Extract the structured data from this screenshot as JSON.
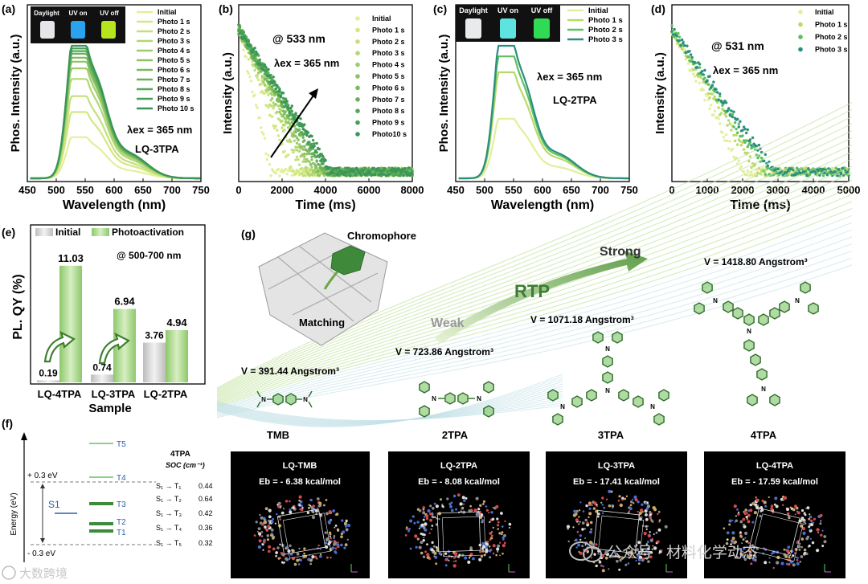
{
  "panel_labels": {
    "a": "(a)",
    "b": "(b)",
    "c": "(c)",
    "d": "(d)",
    "e": "(e)",
    "f": "(f)",
    "g": "(g)"
  },
  "photo_labels": {
    "daylight": "Daylight",
    "uv_on": "UV on",
    "uv_off": "UV off"
  },
  "colors": {
    "series": [
      "#e3ef9a",
      "#d2e882",
      "#c3e07c",
      "#b2d774",
      "#9fcd6c",
      "#8cc464",
      "#79ba5c",
      "#67b158",
      "#56a855",
      "#479f56",
      "#3a9658"
    ],
    "teal": [
      "#e3ef9a",
      "#b8da6a",
      "#5fbf5e",
      "#2a8f80"
    ],
    "bar_initial": "#d4d4d4",
    "bar_photo": "#a9d784",
    "level_green": "#3d8a3a",
    "level_blue": "#2a5fb0"
  },
  "chart_data": [
    {
      "id": "a",
      "type": "line",
      "xlabel": "Wavelength (nm)",
      "ylabel": "Phos. Intensity (a.u.)",
      "xlim": [
        450,
        750
      ],
      "xticks": [
        450,
        500,
        550,
        600,
        650,
        700,
        750
      ],
      "series_names": [
        "Initial",
        "Photo 1 s",
        "Photo 2 s",
        "Photo 3 s",
        "Photo 4 s",
        "Photo 5 s",
        "Photo 6 s",
        "Photo 7 s",
        "Photo 8 s",
        "Photo 9 s",
        "Photo 10 s"
      ],
      "peak_values": [
        0.31,
        0.5,
        0.62,
        0.75,
        0.83,
        0.88,
        0.91,
        0.94,
        0.96,
        0.98,
        1.0
      ],
      "peak_nm": 533,
      "shoulder_nm": 565,
      "annotations": [
        "λex = 365 nm",
        "LQ-3TPA"
      ]
    },
    {
      "id": "b",
      "type": "scatter",
      "xlabel": "Time (ms)",
      "ylabel": "Intensity (a.u.)",
      "xlim": [
        0,
        8000
      ],
      "xticks": [
        0,
        2000,
        4000,
        6000,
        8000
      ],
      "series_names": [
        "Initial",
        "Photo 1 s",
        "Photo 2 s",
        "Photo 3 s",
        "Photo 4 s",
        "Photo 5 s",
        "Photo 6 s",
        "Photo 7 s",
        "Photo 8 s",
        "Photo 9 s",
        "Photo10 s"
      ],
      "decay_end_ms": [
        1500,
        2500,
        2900,
        3200,
        3400,
        3600,
        3800,
        4000,
        4100,
        4200,
        4300
      ],
      "annotations": [
        "@ 533 nm",
        "λex = 365 nm"
      ]
    },
    {
      "id": "c",
      "type": "line",
      "xlabel": "Wavelength (nm)",
      "ylabel": "Phos. Intensity (a.u.)",
      "xlim": [
        450,
        750
      ],
      "xticks": [
        450,
        500,
        550,
        600,
        650,
        700,
        750
      ],
      "series_names": [
        "Initial",
        "Photo 1 s",
        "Photo 2 s",
        "Photo 3 s"
      ],
      "peak_values": [
        0.45,
        0.8,
        0.92,
        1.0
      ],
      "peak_nm": 531,
      "shoulder_nm": 562,
      "annotations": [
        "λex = 365 nm",
        "LQ-2TPA"
      ]
    },
    {
      "id": "d",
      "type": "scatter",
      "xlabel": "Time (ms)",
      "ylabel": "Intensity (a.u.)",
      "xlim": [
        0,
        5000
      ],
      "xticks": [
        0,
        1000,
        2000,
        3000,
        4000,
        5000
      ],
      "series_names": [
        "Initial",
        "Photo 1 s",
        "Photo 2 s",
        "Photo 3 s"
      ],
      "decay_end_ms": [
        2000,
        2400,
        2700,
        2900
      ],
      "annotations": [
        "@ 531 nm",
        "λex = 365 nm"
      ]
    },
    {
      "id": "e",
      "type": "bar",
      "xlabel": "Sample",
      "ylabel": "PL. QY (%)",
      "legend": [
        "Initial",
        "Photoactivation"
      ],
      "annotation": "@ 500-700 nm",
      "categories": [
        "LQ-4TPA",
        "LQ-3TPA",
        "LQ-2TPA"
      ],
      "initial": [
        0.19,
        0.74,
        3.76
      ],
      "photo": [
        11.03,
        6.94,
        4.94
      ],
      "value_labels_initial": [
        "0.19",
        "0.74",
        "3.76"
      ],
      "value_labels_photo": [
        "11.03",
        "6.94",
        "4.94"
      ],
      "ylim": [
        0,
        12
      ]
    }
  ],
  "panel_f": {
    "ylabel": "Energy (eV)",
    "upper": "+ 0.3 eV",
    "lower": "- 0.3 eV",
    "s1": "S1",
    "levels": [
      "T5",
      "T4",
      "T3",
      "T2",
      "T1"
    ],
    "table_title": "4TPA",
    "table_header": "SOC (cm⁻¹)",
    "rows": [
      {
        "label": "S₁ → T₁",
        "value": "0.44"
      },
      {
        "label": "S₁ → T₂",
        "value": "0.64"
      },
      {
        "label": "S₁ → T₃",
        "value": "0.42"
      },
      {
        "label": "S₁ → T₄",
        "value": "0.36"
      },
      {
        "label": "S₁ → T₅",
        "value": "0.32"
      }
    ]
  },
  "panel_g": {
    "chromophore": "Chromophore",
    "matching": "Matching",
    "weak": "Weak",
    "rtp": "RTP",
    "strong": "Strong",
    "volumes": [
      "V = 391.44 Angstrom³",
      "V = 723.86 Angstrom³",
      "V = 1071.18 Angstrom³",
      "V = 1418.80 Angstrom³"
    ],
    "molecules": [
      "TMB",
      "2TPA",
      "3TPA",
      "4TPA"
    ],
    "crystals": [
      {
        "name": "LQ-TMB",
        "eb": "Eb = - 6.38 kcal/mol"
      },
      {
        "name": "LQ-2TPA",
        "eb": "Eb = - 8.08 kcal/mol"
      },
      {
        "name": "LQ-3TPA",
        "eb": "Eb = - 17.41 kcal/mol"
      },
      {
        "name": "LQ-4TPA",
        "eb": "Eb = - 17.59 kcal/mol"
      }
    ]
  },
  "watermark": {
    "left": "大数跨境",
    "right": "公众号 · 材料化学动态"
  }
}
